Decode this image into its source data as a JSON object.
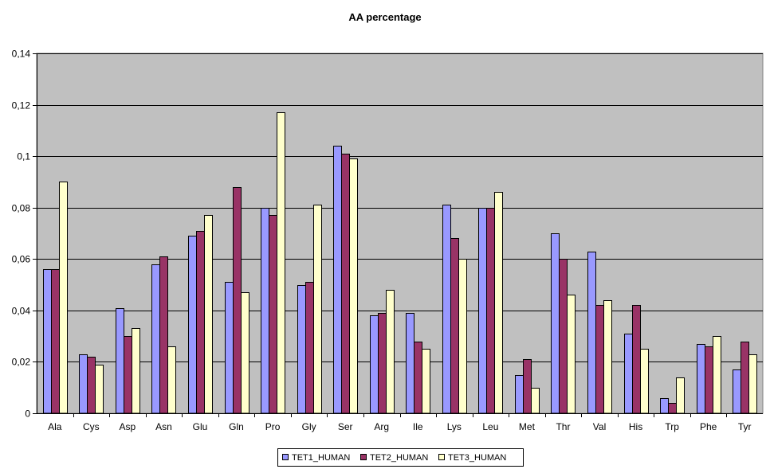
{
  "chart_data": {
    "type": "bar",
    "title": "AA percentage",
    "xlabel": "",
    "ylabel": "",
    "categories": [
      "Ala",
      "Cys",
      "Asp",
      "Asn",
      "Glu",
      "Gln",
      "Pro",
      "Gly",
      "Ser",
      "Arg",
      "Ile",
      "Lys",
      "Leu",
      "Met",
      "Thr",
      "Val",
      "His",
      "Trp",
      "Phe",
      "Tyr"
    ],
    "series": [
      {
        "name": "TET1_HUMAN",
        "color": "#9999ff",
        "values": [
          0.056,
          0.023,
          0.041,
          0.058,
          0.069,
          0.051,
          0.08,
          0.05,
          0.104,
          0.038,
          0.039,
          0.081,
          0.08,
          0.015,
          0.07,
          0.063,
          0.031,
          0.006,
          0.027,
          0.017
        ]
      },
      {
        "name": "TET2_HUMAN",
        "color": "#993366",
        "values": [
          0.056,
          0.022,
          0.03,
          0.061,
          0.071,
          0.088,
          0.077,
          0.051,
          0.101,
          0.039,
          0.028,
          0.068,
          0.08,
          0.021,
          0.06,
          0.042,
          0.042,
          0.004,
          0.026,
          0.028
        ]
      },
      {
        "name": "TET3_HUMAN",
        "color": "#ffffcc",
        "values": [
          0.09,
          0.019,
          0.033,
          0.026,
          0.077,
          0.047,
          0.117,
          0.081,
          0.099,
          0.048,
          0.025,
          0.06,
          0.086,
          0.01,
          0.046,
          0.044,
          0.025,
          0.014,
          0.03,
          0.023
        ]
      }
    ],
    "y_ticks": [
      "0",
      "0,02",
      "0,04",
      "0,06",
      "0,08",
      "0,1",
      "0,12",
      "0,14"
    ],
    "ylim": [
      0,
      0.14
    ],
    "grid": true,
    "plot_background": "#c0c0c0",
    "legend_position": "bottom"
  }
}
